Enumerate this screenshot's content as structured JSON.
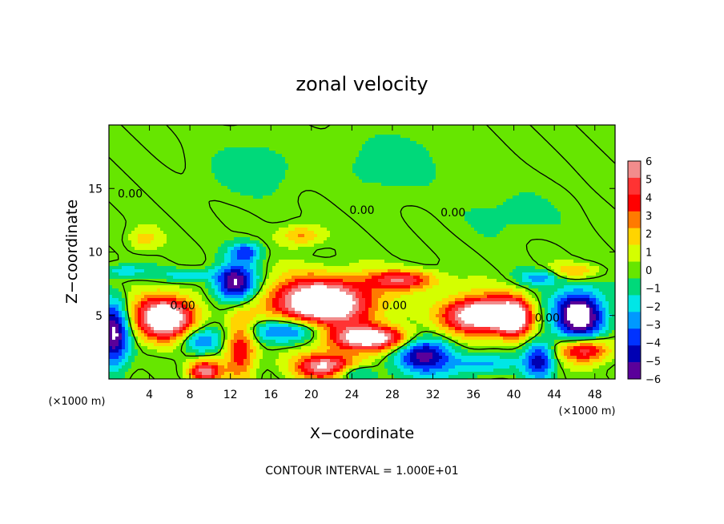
{
  "chart_data": {
    "type": "heatmap",
    "title": "zonal velocity",
    "xlabel": "X−coordinate",
    "ylabel": "Z−coordinate",
    "x_unit": "(×1000 m)",
    "y_unit": "(×1000 m)",
    "xlim": [
      0,
      50
    ],
    "ylim": [
      0,
      20
    ],
    "x_ticks": [
      4,
      8,
      12,
      16,
      20,
      24,
      28,
      32,
      36,
      40,
      44,
      48
    ],
    "y_ticks": [
      5,
      10,
      15
    ],
    "colorbar": {
      "range": [
        -6,
        6
      ],
      "ticks": [
        6,
        5,
        4,
        3,
        2,
        1,
        0,
        -1,
        -2,
        -3,
        -4,
        -5,
        -6
      ],
      "tick_labels": [
        "6",
        "5",
        "4",
        "3",
        "2",
        "1",
        "0",
        "−1",
        "−2",
        "−3",
        "−4",
        "−5",
        "−6"
      ],
      "colors": [
        "#f28c8c",
        "#ff3333",
        "#ff0000",
        "#ff7a00",
        "#ffd400",
        "#d4ff00",
        "#66e600",
        "#00d97a",
        "#00e6e6",
        "#0099ff",
        "#0033ff",
        "#0000b3",
        "#5a009a"
      ]
    },
    "contour_labels": [
      {
        "text": "0.00",
        "x": 2.1,
        "z": 14.3
      },
      {
        "text": "0.00",
        "x": 25.0,
        "z": 13.0
      },
      {
        "text": "0.00",
        "x": 34.0,
        "z": 12.8
      },
      {
        "text": "0.00",
        "x": 7.3,
        "z": 5.5
      },
      {
        "text": "0.00",
        "x": 28.2,
        "z": 5.5
      },
      {
        "text": "0.00",
        "x": 43.3,
        "z": 4.5
      }
    ],
    "features": [
      {
        "x": 5.5,
        "z": 4.8,
        "v": 9,
        "sx": 3.0,
        "sz": 1.7
      },
      {
        "x": 13.0,
        "z": 2.5,
        "v": 5,
        "sx": 1.5,
        "sz": 2.5
      },
      {
        "x": 21.0,
        "z": 6.0,
        "v": 10,
        "sx": 5.0,
        "sz": 1.9
      },
      {
        "x": 29.0,
        "z": 7.8,
        "v": 5,
        "sx": 3.5,
        "sz": 0.8
      },
      {
        "x": 36.5,
        "z": 5.0,
        "v": 9,
        "sx": 3.5,
        "sz": 1.5
      },
      {
        "x": 26.0,
        "z": 3.2,
        "v": 8,
        "sx": 4.5,
        "sz": 1.0
      },
      {
        "x": 21.5,
        "z": 1.0,
        "v": 7,
        "sx": 3.0,
        "sz": 1.0
      },
      {
        "x": 47.0,
        "z": 2.3,
        "v": 6,
        "sx": 2.5,
        "sz": 1.0
      },
      {
        "x": 40.0,
        "z": 4.8,
        "v": 7,
        "sx": 1.7,
        "sz": 1.5
      },
      {
        "x": 9.5,
        "z": 0.6,
        "v": 6,
        "sx": 1.6,
        "sz": 0.8
      },
      {
        "x": 19.0,
        "z": 11.3,
        "v": 2.8,
        "sx": 2.0,
        "sz": 0.8
      },
      {
        "x": 3.5,
        "z": 11.0,
        "v": 2.0,
        "sx": 1.5,
        "sz": 0.9
      },
      {
        "x": 46.0,
        "z": 8.5,
        "v": 2.5,
        "sx": 2.5,
        "sz": 0.6
      },
      {
        "x": 0.5,
        "z": 3.5,
        "v": -7,
        "sx": 1.5,
        "sz": 2.5
      },
      {
        "x": 12.5,
        "z": 7.5,
        "v": -7,
        "sx": 2.0,
        "sz": 1.5
      },
      {
        "x": 13.5,
        "z": 10.0,
        "v": -4,
        "sx": 1.5,
        "sz": 0.8
      },
      {
        "x": 17.5,
        "z": 3.8,
        "v": -5,
        "sx": 4.0,
        "sz": 1.0
      },
      {
        "x": 31.0,
        "z": 2.0,
        "v": -6,
        "sx": 3.0,
        "sz": 1.7
      },
      {
        "x": 46.5,
        "z": 5.0,
        "v": -8,
        "sx": 2.5,
        "sz": 2.0
      },
      {
        "x": 42.5,
        "z": 1.5,
        "v": -5,
        "sx": 1.5,
        "sz": 1.5
      },
      {
        "x": 9.0,
        "z": 3.0,
        "v": -4,
        "sx": 2.0,
        "sz": 1.0
      },
      {
        "x": 1.5,
        "z": 8.5,
        "v": -2.2,
        "sx": 2.5,
        "sz": 0.5
      },
      {
        "x": 8.0,
        "z": 8.2,
        "v": -2.2,
        "sx": 3.0,
        "sz": 0.5
      },
      {
        "x": 42.5,
        "z": 8.0,
        "v": -3,
        "sx": 2.0,
        "sz": 0.6
      },
      {
        "x": 37.0,
        "z": 1.2,
        "v": -3,
        "sx": 3.0,
        "sz": 0.8
      },
      {
        "x": 24.0,
        "z": 0.5,
        "v": -3,
        "sx": 2.0,
        "sz": 0.6
      },
      {
        "x": 14.0,
        "z": 16.5,
        "v": -1.3,
        "sx": 4.0,
        "sz": 2.0
      },
      {
        "x": 28.0,
        "z": 17.0,
        "v": -1.0,
        "sx": 5.0,
        "sz": 2.5
      },
      {
        "x": 40.0,
        "z": 13.0,
        "v": -0.8,
        "sx": 5.0,
        "sz": 2.0
      }
    ],
    "annotation": "CONTOUR INTERVAL = 1.000E+01"
  }
}
